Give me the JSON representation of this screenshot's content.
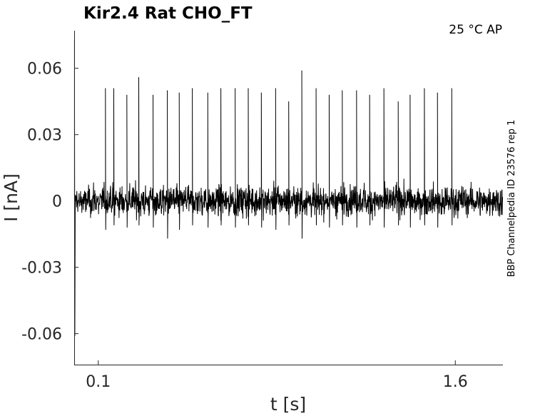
{
  "chart_data": {
    "type": "line",
    "title": "Kir2.4  Rat  CHO_FT",
    "condition": "25 °C  AP",
    "side_note": "BBP Channelpedia ID 23576 rep 1",
    "xlabel": "t [s]",
    "ylabel": "I [nA]",
    "xlim": [
      -0.0012,
      1.8
    ],
    "ylim": [
      -0.074,
      0.077
    ],
    "x_ticks": [
      {
        "value": 0.1,
        "label": "0.1"
      },
      {
        "value": 1.6,
        "label": "1.6"
      }
    ],
    "y_ticks": [
      {
        "value": 0.06,
        "label": "0.06"
      },
      {
        "value": 0.03,
        "label": "0.03"
      },
      {
        "value": 0,
        "label": "0"
      },
      {
        "value": -0.03,
        "label": "-0.03"
      },
      {
        "value": -0.06,
        "label": "-0.06"
      }
    ],
    "grid": false,
    "series": [
      {
        "color": "#000000",
        "baseline": 0.0,
        "noise_amplitude": 0.0095,
        "onset_transient": {
          "x": 0.0,
          "peak": 0.073,
          "trough": -0.061
        },
        "spike_times": [
          0.13,
          0.165,
          0.22,
          0.27,
          0.33,
          0.39,
          0.44,
          0.495,
          0.56,
          0.615,
          0.675,
          0.73,
          0.785,
          0.845,
          0.9,
          0.955,
          1.015,
          1.07,
          1.125,
          1.185,
          1.24,
          1.3,
          1.36,
          1.41,
          1.47,
          1.525,
          1.585
        ],
        "spike_peaks": [
          0.051,
          0.051,
          0.048,
          0.056,
          0.048,
          0.05,
          0.049,
          0.051,
          0.049,
          0.051,
          0.051,
          0.051,
          0.049,
          0.051,
          0.045,
          0.059,
          0.051,
          0.048,
          0.05,
          0.05,
          0.048,
          0.051,
          0.045,
          0.048,
          0.051,
          0.049,
          0.051
        ],
        "spike_troughs": [
          -0.013,
          -0.011,
          -0.012,
          -0.011,
          -0.012,
          -0.017,
          -0.013,
          -0.011,
          -0.012,
          -0.011,
          -0.012,
          -0.011,
          -0.012,
          -0.013,
          -0.011,
          -0.017,
          -0.011,
          -0.012,
          -0.011,
          -0.012,
          -0.011,
          -0.012,
          -0.011,
          -0.012,
          -0.011,
          -0.012,
          -0.011
        ]
      }
    ]
  }
}
